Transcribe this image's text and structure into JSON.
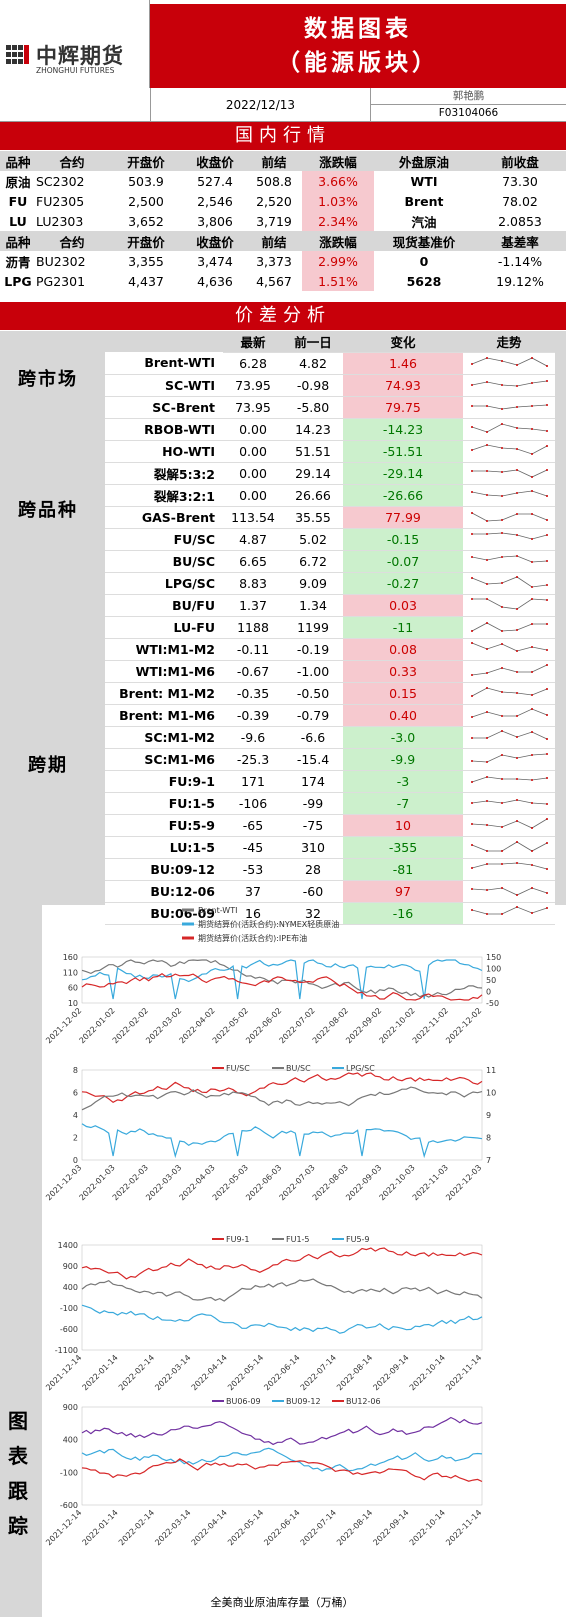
{
  "header": {
    "logo_text": "中辉期货",
    "logo_sub": "ZHONGHUI FUTURES",
    "title_line1": "数据图表",
    "title_line2": "（能源版块）",
    "date": "2022/12/13",
    "author": "郭艳鹏",
    "license": "F03104066"
  },
  "domestic": {
    "banner": "国内行情",
    "head1": [
      "品种",
      "合约",
      "开盘价",
      "收盘价",
      "前结",
      "涨跌幅",
      "外盘原油",
      "前收盘"
    ],
    "rows1": [
      [
        "原油",
        "SC2302",
        "503.9",
        "527.4",
        "508.8",
        "3.66%",
        "WTI",
        "73.30"
      ],
      [
        "FU",
        "FU2305",
        "2,500",
        "2,546",
        "2,520",
        "1.03%",
        "Brent",
        "78.02"
      ],
      [
        "LU",
        "LU2303",
        "3,652",
        "3,806",
        "3,719",
        "2.34%",
        "汽油",
        "2.0853"
      ]
    ],
    "head2": [
      "品种",
      "合约",
      "开盘价",
      "收盘价",
      "前结",
      "涨跌幅",
      "现货基准价",
      "基差率"
    ],
    "rows2": [
      [
        "沥青",
        "BU2302",
        "3,355",
        "3,474",
        "3,373",
        "2.99%",
        "0",
        "-1.14%"
      ],
      [
        "LPG",
        "PG2301",
        "4,437",
        "4,636",
        "4,567",
        "1.51%",
        "5628",
        "19.12%"
      ]
    ]
  },
  "spread": {
    "banner": "价差分析",
    "cols": [
      "最新",
      "前一日",
      "变化",
      "走势"
    ],
    "categories": [
      "跨市场",
      "跨品种",
      "跨期"
    ],
    "rows": [
      {
        "name": "Brent-WTI",
        "latest": "6.28",
        "prev": "4.82",
        "chg": "1.46",
        "dir": "up"
      },
      {
        "name": "SC-WTI",
        "latest": "73.95",
        "prev": "-0.98",
        "chg": "74.93",
        "dir": "up"
      },
      {
        "name": "SC-Brent",
        "latest": "73.95",
        "prev": "-5.80",
        "chg": "79.75",
        "dir": "up"
      },
      {
        "name": "RBOB-WTI",
        "latest": "0.00",
        "prev": "14.23",
        "chg": "-14.23",
        "dir": "dn"
      },
      {
        "name": "HO-WTI",
        "latest": "0.00",
        "prev": "51.51",
        "chg": "-51.51",
        "dir": "dn"
      },
      {
        "name": "裂解5:3:2",
        "latest": "0.00",
        "prev": "29.14",
        "chg": "-29.14",
        "dir": "dn"
      },
      {
        "name": "裂解3:2:1",
        "latest": "0.00",
        "prev": "26.66",
        "chg": "-26.66",
        "dir": "dn"
      },
      {
        "name": "GAS-Brent",
        "latest": "113.54",
        "prev": "35.55",
        "chg": "77.99",
        "dir": "up"
      },
      {
        "name": "FU/SC",
        "latest": "4.87",
        "prev": "5.02",
        "chg": "-0.15",
        "dir": "dn"
      },
      {
        "name": "BU/SC",
        "latest": "6.65",
        "prev": "6.72",
        "chg": "-0.07",
        "dir": "dn"
      },
      {
        "name": "LPG/SC",
        "latest": "8.83",
        "prev": "9.09",
        "chg": "-0.27",
        "dir": "dn"
      },
      {
        "name": "BU/FU",
        "latest": "1.37",
        "prev": "1.34",
        "chg": "0.03",
        "dir": "up"
      },
      {
        "name": "LU-FU",
        "latest": "1188",
        "prev": "1199",
        "chg": "-11",
        "dir": "dn"
      },
      {
        "name": "WTI:M1-M2",
        "latest": "-0.11",
        "prev": "-0.19",
        "chg": "0.08",
        "dir": "up"
      },
      {
        "name": "WTI:M1-M6",
        "latest": "-0.67",
        "prev": "-1.00",
        "chg": "0.33",
        "dir": "up"
      },
      {
        "name": "Brent: M1-M2",
        "latest": "-0.35",
        "prev": "-0.50",
        "chg": "0.15",
        "dir": "up"
      },
      {
        "name": "Brent: M1-M6",
        "latest": "-0.39",
        "prev": "-0.79",
        "chg": "0.40",
        "dir": "up"
      },
      {
        "name": "SC:M1-M2",
        "latest": "-9.6",
        "prev": "-6.6",
        "chg": "-3.0",
        "dir": "dn"
      },
      {
        "name": "SC:M1-M6",
        "latest": "-25.3",
        "prev": "-15.4",
        "chg": "-9.9",
        "dir": "dn"
      },
      {
        "name": "FU:9-1",
        "latest": "171",
        "prev": "174",
        "chg": "-3",
        "dir": "dn"
      },
      {
        "name": "FU:1-5",
        "latest": "-106",
        "prev": "-99",
        "chg": "-7",
        "dir": "dn"
      },
      {
        "name": "FU:5-9",
        "latest": "-65",
        "prev": "-75",
        "chg": "10",
        "dir": "up"
      },
      {
        "name": "LU:1-5",
        "latest": "-45",
        "prev": "310",
        "chg": "-355",
        "dir": "dn"
      },
      {
        "name": "BU:09-12",
        "latest": "-53",
        "prev": "28",
        "chg": "-81",
        "dir": "dn"
      },
      {
        "name": "BU:12-06",
        "latest": "37",
        "prev": "-60",
        "chg": "97",
        "dir": "up"
      },
      {
        "name": "BU:06-09",
        "latest": "16",
        "prev": "32",
        "chg": "-16",
        "dir": "dn"
      }
    ]
  },
  "side_label": [
    "图",
    "表",
    "跟",
    "踪"
  ],
  "chart_data": [
    {
      "type": "line",
      "legend": [
        "Brent-WTI",
        "期货结算价(活跃合约):NYMEX轻质原油",
        "期货结算价(活跃合约):IPE布油"
      ],
      "left_ticks": [
        "160",
        "110",
        "60",
        "10"
      ],
      "right_ticks": [
        "150",
        "100",
        "50",
        "0",
        "-50"
      ],
      "x_ticks": [
        "2021-12-02",
        "2022-01-02",
        "2022-02-02",
        "2022-03-02",
        "2022-04-02",
        "2022-05-02",
        "2022-06-02",
        "2022-07-02",
        "2022-08-02",
        "2022-09-02",
        "2022-10-02",
        "2022-11-02",
        "2022-12-02"
      ],
      "colors": [
        "#777777",
        "#39a9dc",
        "#d62728"
      ]
    },
    {
      "type": "line",
      "legend": [
        "FU/SC",
        "BU/SC",
        "LPG/SC"
      ],
      "left_ticks": [
        "8",
        "6",
        "4",
        "2",
        "0"
      ],
      "right_ticks": [
        "11",
        "10",
        "9",
        "8",
        "7"
      ],
      "x_ticks": [
        "2021-12-03",
        "2022-01-03",
        "2022-02-03",
        "2022-03-03",
        "2022-04-03",
        "2022-05-03",
        "2022-06-03",
        "2022-07-03",
        "2022-08-03",
        "2022-09-03",
        "2022-10-03",
        "2022-11-03",
        "2022-12-03"
      ],
      "colors": [
        "#d62728",
        "#777777",
        "#39a9dc"
      ]
    },
    {
      "type": "line",
      "legend": [
        "FU9-1",
        "FU1-5",
        "FU5-9"
      ],
      "left_ticks": [
        "1400",
        "900",
        "400",
        "-100",
        "-600",
        "-1100"
      ],
      "x_ticks": [
        "2021-12-14",
        "2022-01-14",
        "2022-02-14",
        "2022-03-14",
        "2022-04-14",
        "2022-05-14",
        "2022-06-14",
        "2022-07-14",
        "2022-08-14",
        "2022-09-14",
        "2022-10-14",
        "2022-11-14"
      ],
      "colors": [
        "#d62728",
        "#777777",
        "#39a9dc"
      ]
    },
    {
      "type": "line",
      "legend": [
        "BU06-09",
        "BU09-12",
        "BU12-06"
      ],
      "left_ticks": [
        "900",
        "400",
        "-100",
        "-600"
      ],
      "x_ticks": [
        "2021-12-14",
        "2022-01-14",
        "2022-02-14",
        "2022-03-14",
        "2022-04-14",
        "2022-05-14",
        "2022-06-14",
        "2022-07-14",
        "2022-08-14",
        "2022-09-14",
        "2022-10-14",
        "2022-11-14"
      ],
      "colors": [
        "#7030a0",
        "#39a9dc",
        "#d62728"
      ]
    }
  ],
  "footer_caption": "全美商业原油库存量（万桶）"
}
